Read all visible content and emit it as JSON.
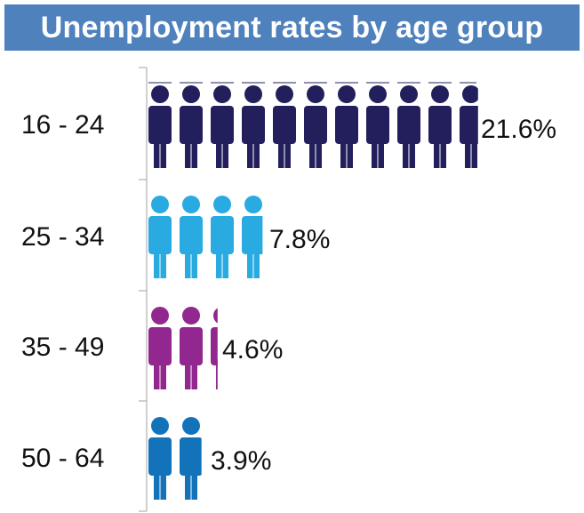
{
  "chart_data": {
    "type": "bar",
    "orientation": "horizontal",
    "title": "Unemployment rates by age group",
    "categories": [
      "16 - 24",
      "25 - 34",
      "35 - 49",
      "50 - 64"
    ],
    "values": [
      21.6,
      7.8,
      4.6,
      3.9
    ],
    "value_labels": [
      "21.6%",
      "7.8%",
      "4.6%",
      "3.9%"
    ],
    "unit": "%",
    "colors": [
      "#231f5c",
      "#29abe2",
      "#92278f",
      "#1273bb"
    ],
    "value_per_icon": 2,
    "icon": "person-icon",
    "grid": false,
    "legend": "none"
  }
}
